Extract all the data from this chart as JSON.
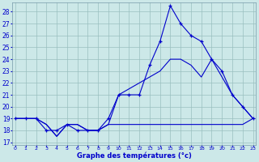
{
  "xlabel": "Graphe des températures (°c)",
  "bg_color": "#cce8e8",
  "grid_color": "#99bfbf",
  "line_color": "#0000cc",
  "x_hours": [
    0,
    1,
    2,
    3,
    4,
    5,
    6,
    7,
    8,
    9,
    10,
    11,
    12,
    13,
    14,
    15,
    16,
    17,
    18,
    19,
    20,
    21,
    22,
    23
  ],
  "y_ticks": [
    17,
    18,
    19,
    20,
    21,
    22,
    23,
    24,
    25,
    26,
    27,
    28
  ],
  "ylim": [
    16.8,
    28.8
  ],
  "xlim": [
    -0.3,
    23.3
  ],
  "temp_line": [
    19,
    19,
    19,
    18,
    18,
    18.5,
    18,
    18,
    18,
    19,
    21,
    21,
    21,
    23.5,
    25.5,
    28.5,
    27,
    26,
    25.5,
    24,
    23,
    21,
    20,
    19
  ],
  "min_line": [
    19,
    19,
    19,
    18.5,
    17.5,
    18.5,
    18.5,
    18,
    18,
    18.5,
    18.5,
    18.5,
    18.5,
    18.5,
    18.5,
    18.5,
    18.5,
    18.5,
    18.5,
    18.5,
    18.5,
    18.5,
    18.5,
    19
  ],
  "max_line": [
    19,
    19,
    19,
    18.5,
    17.5,
    18.5,
    18.5,
    18,
    18,
    18.5,
    21,
    21.5,
    22,
    22.5,
    23,
    24,
    24,
    23.5,
    22.5,
    24,
    22.5,
    21,
    20,
    19
  ]
}
